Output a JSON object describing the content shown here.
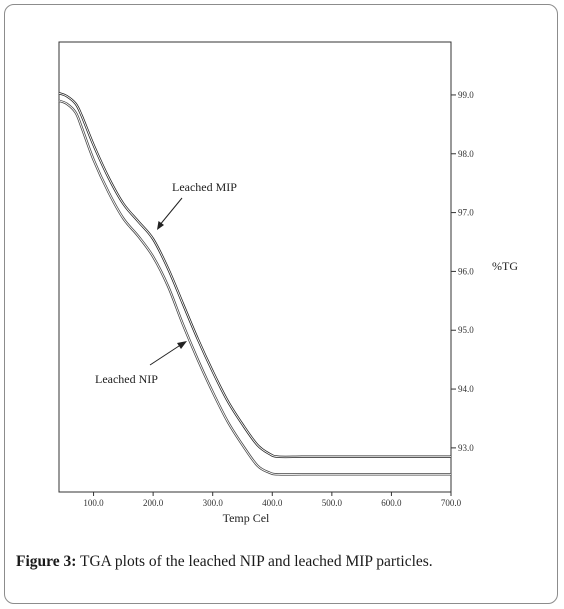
{
  "chart_data": {
    "type": "line",
    "xlabel": "Temp Cel",
    "ylabel": "%TG",
    "xlim": [
      42,
      700
    ],
    "ylim": [
      92.25,
      99.9
    ],
    "x_ticks": [
      "100.0",
      "200.0",
      "300.0",
      "400.0",
      "500.0",
      "600.0",
      "700.0"
    ],
    "x_tick_values": [
      100,
      200,
      300,
      400,
      500,
      600,
      700
    ],
    "y_ticks": [
      "93.0",
      "94.0",
      "95.0",
      "96.0",
      "97.0",
      "98.0",
      "99.0"
    ],
    "y_tick_values": [
      93,
      94,
      95,
      96,
      97,
      98,
      99
    ],
    "y_axis_side": "right",
    "grid": false,
    "series": [
      {
        "name": "Leached MIP",
        "color": "#222222",
        "x": [
          42,
          55,
          70,
          80,
          100,
          125,
          150,
          175,
          200,
          225,
          250,
          275,
          300,
          325,
          350,
          375,
          395,
          410,
          450,
          500,
          600,
          700
        ],
        "y": [
          99.03,
          98.98,
          98.85,
          98.65,
          98.15,
          97.6,
          97.15,
          96.85,
          96.55,
          96.05,
          95.45,
          94.85,
          94.3,
          93.8,
          93.4,
          93.05,
          92.9,
          92.85,
          92.85,
          92.85,
          92.85,
          92.85
        ]
      },
      {
        "name": "Leached NIP",
        "color": "#444444",
        "x": [
          42,
          55,
          70,
          80,
          100,
          125,
          150,
          175,
          200,
          225,
          250,
          275,
          300,
          325,
          350,
          375,
          395,
          410,
          450,
          500,
          600,
          700
        ],
        "y": [
          98.9,
          98.85,
          98.7,
          98.45,
          97.9,
          97.35,
          96.9,
          96.6,
          96.25,
          95.75,
          95.1,
          94.5,
          93.95,
          93.45,
          93.05,
          92.7,
          92.58,
          92.55,
          92.55,
          92.55,
          92.55,
          92.55
        ]
      }
    ],
    "annotations": [
      {
        "text": "Leached MIP",
        "arrow_to": [
          200,
          96.55
        ]
      },
      {
        "text": "Leached NIP",
        "arrow_to": [
          260,
          95.0
        ]
      }
    ]
  },
  "caption": {
    "label": "Figure 3:",
    "text": " TGA plots of the leached NIP and leached MIP particles."
  }
}
